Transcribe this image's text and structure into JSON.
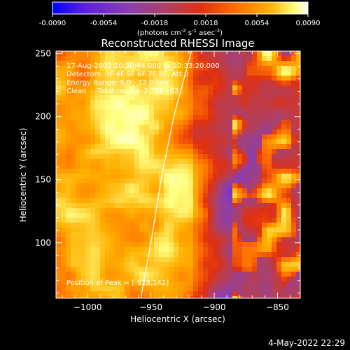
{
  "colorbar": {
    "ticks": [
      "-0.0090",
      "-0.0054",
      "-0.0018",
      "0.0018",
      "0.0054",
      "0.0090"
    ],
    "tick_values": [
      -0.009,
      -0.0054,
      -0.0018,
      0.0018,
      0.0054,
      0.009
    ],
    "unit_prefix": "(photons cm",
    "unit_exp1": "-2",
    "unit_mid1": " s",
    "unit_exp2": "-1",
    "unit_mid2": " asec",
    "unit_exp3": "-2",
    "unit_suffix": ")",
    "colors": [
      "#0000ff",
      "#5a1fe0",
      "#8a3fb0",
      "#b04060",
      "#e03010",
      "#ff7000",
      "#ffb000",
      "#ffff80",
      "#ffffff"
    ]
  },
  "chart_data": {
    "type": "heatmap",
    "title": "Reconstructed RHESSI Image",
    "xlabel": "Heliocentric X (arcsec)",
    "ylabel": "Heliocentric Y (arcsec)",
    "xlim": [
      -1025,
      -832
    ],
    "ylim": [
      56,
      252
    ],
    "x_ticks": [
      -1000,
      -950,
      -900,
      -850
    ],
    "y_ticks": [
      100,
      150,
      200,
      250
    ],
    "x_tick_labels": [
      "−1000",
      "−950",
      "−900",
      "−850"
    ],
    "y_tick_labels": [
      "100",
      "150",
      "200",
      "250"
    ],
    "annotations": [
      "17-Aug-2003 10:30:44.000 to 10:33:20.000",
      "Detectors: 3F 4F 5F 6F 7F 8F, Att 0",
      "Energy Range: 6.0 - 12.0 keV",
      "Clean     Total counts: 2.78E+03"
    ],
    "peak_label": "Position of Peak = [-928,142]",
    "peak": [
      -928,
      142
    ],
    "limb_curve": [
      [
        -958,
        56
      ],
      [
        -950,
        100
      ],
      [
        -942,
        150
      ],
      [
        -932,
        200
      ],
      [
        -918,
        252
      ]
    ]
  },
  "footer": {
    "date": "4-May-2022 22:29"
  }
}
